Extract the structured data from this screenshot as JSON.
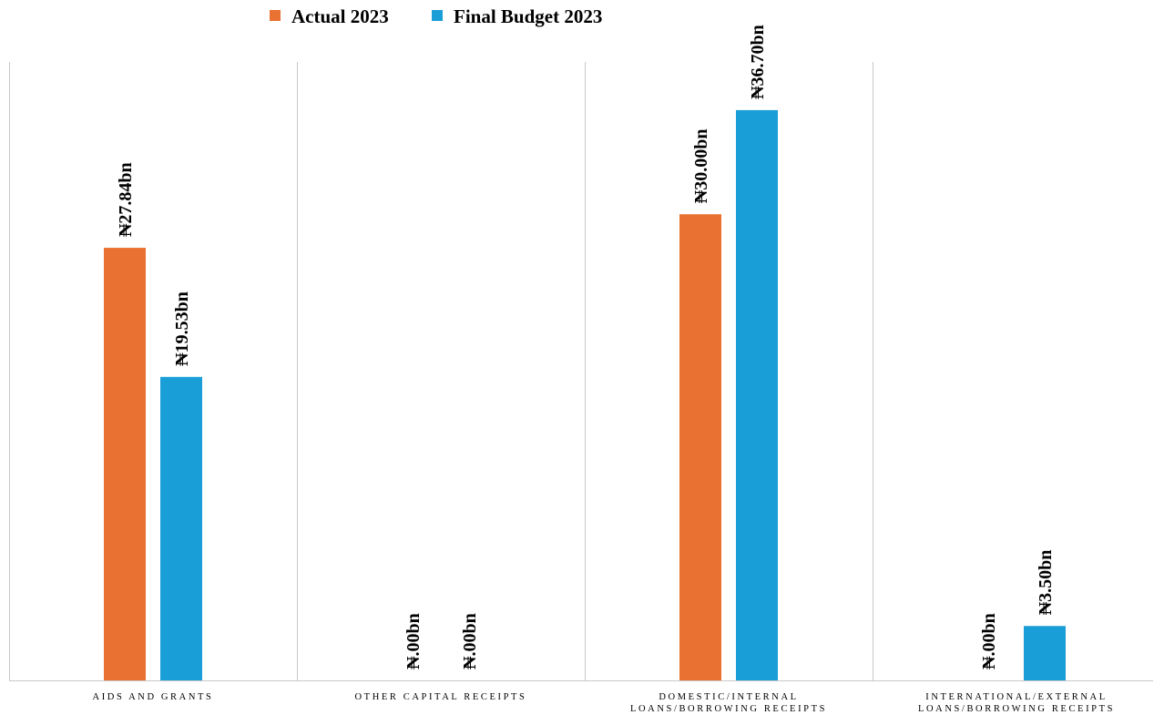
{
  "chart_data": {
    "type": "bar",
    "categories": [
      [
        "AIDS AND GRANTS"
      ],
      [
        "OTHER CAPITAL RECEIPTS"
      ],
      [
        "DOMESTIC/INTERNAL",
        "LOANS/BORROWING RECEIPTS"
      ],
      [
        "INTERNATIONAL/EXTERNAL",
        "LOANS/BORROWING RECEIPTS"
      ]
    ],
    "series": [
      {
        "name": "Actual 2023",
        "color": "#E97132",
        "values": [
          27.84,
          0,
          30.0,
          0
        ],
        "labels": [
          "₦27.84bn",
          "₦.00bn",
          "₦30.00bn",
          "₦.00bn"
        ]
      },
      {
        "name": "Final Budget 2023",
        "color": "#1A9ED8",
        "values": [
          19.53,
          0,
          36.7,
          3.5
        ],
        "labels": [
          "₦19.53bn",
          "₦.00bn",
          "₦36.70bn",
          "₦3.50bn"
        ]
      }
    ],
    "ylim": [
      0,
      40
    ],
    "legend_position": "top",
    "gridlines": "vertical category separators"
  }
}
